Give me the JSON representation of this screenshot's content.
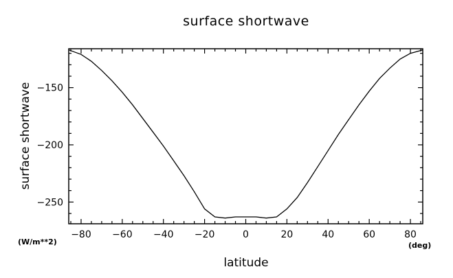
{
  "chart_data": {
    "type": "line",
    "title": "surface shortwave",
    "xlabel": "latitude",
    "ylabel": "surface shortwave",
    "x_unit": "(deg)",
    "y_unit": "(W/m**2)",
    "xlim": [
      -86,
      86
    ],
    "ylim": [
      -269,
      -116
    ],
    "x_ticks": [
      -80,
      -60,
      -40,
      -20,
      0,
      20,
      40,
      60,
      80
    ],
    "y_ticks": [
      -150,
      -200,
      -250
    ],
    "x_minor_step": 5,
    "y_minor_step": 10,
    "grid": false,
    "series": [
      {
        "x": [
          -86,
          -80,
          -75,
          -70,
          -65,
          -60,
          -55,
          -50,
          -45,
          -40,
          -35,
          -30,
          -25,
          -20,
          -15,
          -10,
          -5,
          0,
          5,
          10,
          15,
          20,
          25,
          30,
          35,
          40,
          45,
          50,
          55,
          60,
          65,
          70,
          75,
          80,
          86
        ],
        "y": [
          -117,
          -121,
          -127,
          -135,
          -144,
          -154,
          -165,
          -177,
          -189,
          -201,
          -214,
          -227,
          -241,
          -256,
          -263,
          -264,
          -263,
          -263,
          -263,
          -264,
          -263,
          -256,
          -246,
          -233,
          -219,
          -205,
          -191,
          -178,
          -165,
          -153,
          -142,
          -133,
          -125,
          -120,
          -117
        ]
      }
    ]
  }
}
